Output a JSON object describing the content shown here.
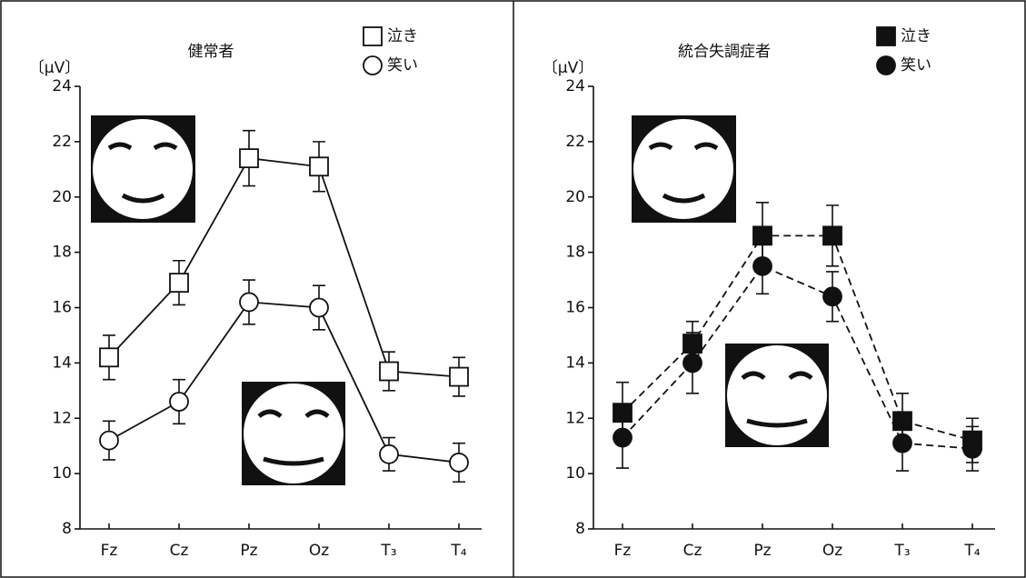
{
  "chart_data": [
    {
      "type": "line",
      "title": "健常者",
      "y_label": "〔μV〕",
      "categories": [
        "Fz",
        "Cz",
        "Pz",
        "Oz",
        "T₃",
        "T₄"
      ],
      "ylim": [
        8,
        24
      ],
      "yticks": [
        8,
        10,
        12,
        14,
        16,
        18,
        20,
        22,
        24
      ],
      "series": [
        {
          "name": "泣き",
          "color": "#111111",
          "marker": "square",
          "filled": false,
          "line_style": "solid",
          "values": [
            14.2,
            16.9,
            21.4,
            21.1,
            13.7,
            13.5
          ],
          "errors": [
            0.8,
            0.8,
            1.0,
            0.9,
            0.7,
            0.7
          ]
        },
        {
          "name": "笑い",
          "color": "#111111",
          "marker": "circle",
          "filled": false,
          "line_style": "solid",
          "values": [
            11.2,
            12.6,
            16.2,
            16.0,
            10.7,
            10.4
          ],
          "errors": [
            0.7,
            0.8,
            0.8,
            0.8,
            0.6,
            0.7
          ]
        }
      ]
    },
    {
      "type": "line",
      "title": "統合失調症者",
      "y_label": "〔μV〕",
      "categories": [
        "Fz",
        "Cz",
        "Pz",
        "Oz",
        "T₃",
        "T₄"
      ],
      "ylim": [
        8,
        24
      ],
      "yticks": [
        8,
        10,
        12,
        14,
        16,
        18,
        20,
        22,
        24
      ],
      "series": [
        {
          "name": "泣き",
          "color": "#111111",
          "marker": "square",
          "filled": true,
          "line_style": "dashed",
          "values": [
            12.2,
            14.7,
            18.6,
            18.6,
            11.9,
            11.2
          ],
          "errors": [
            1.1,
            0.8,
            1.2,
            1.1,
            1.0,
            0.8
          ]
        },
        {
          "name": "笑い",
          "color": "#111111",
          "marker": "circle",
          "filled": true,
          "line_style": "dashed",
          "values": [
            11.3,
            14.0,
            17.5,
            16.4,
            11.1,
            10.9
          ],
          "errors": [
            1.1,
            1.1,
            1.0,
            0.9,
            1.0,
            0.8
          ]
        }
      ]
    }
  ]
}
